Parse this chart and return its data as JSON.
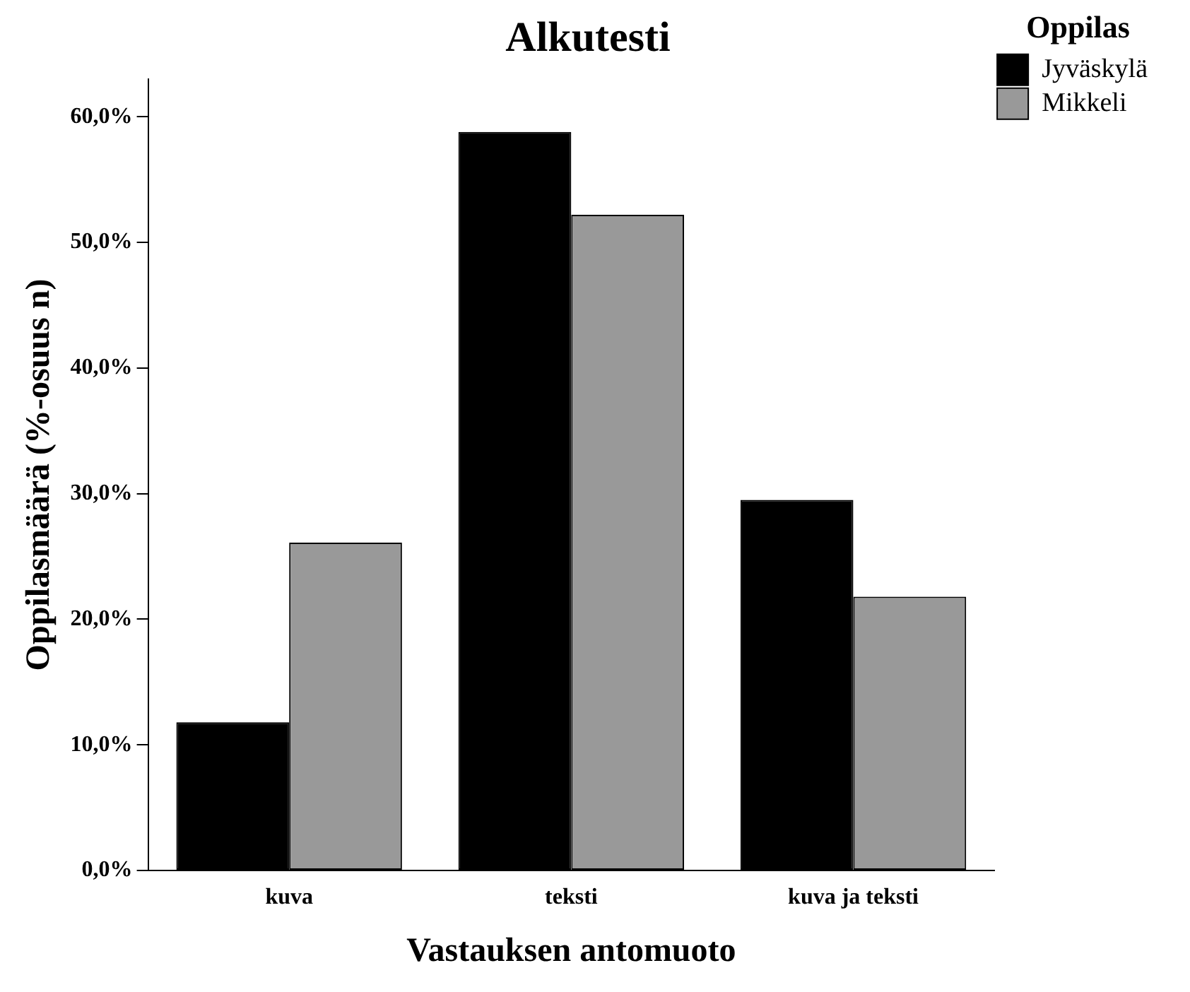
{
  "chart_data": {
    "type": "bar",
    "title": "Alkutesti",
    "xlabel": "Vastauksen antomuoto",
    "ylabel": "Oppilasmäärä (%-osuus n)",
    "legend_title": "Oppilas",
    "categories": [
      "kuva",
      "teksti",
      "kuva ja teksti"
    ],
    "series": [
      {
        "name": "Jyväskylä",
        "color": "#000000",
        "values": [
          11.8,
          58.8,
          29.5
        ]
      },
      {
        "name": "Mikkeli",
        "color": "#999999",
        "values": [
          26.1,
          52.2,
          21.8
        ]
      }
    ],
    "ylim": [
      0,
      63
    ],
    "yticks": [
      {
        "value": 0,
        "label": "0,0%"
      },
      {
        "value": 10,
        "label": "10,0%"
      },
      {
        "value": 20,
        "label": "20,0%"
      },
      {
        "value": 30,
        "label": "30,0%"
      },
      {
        "value": 40,
        "label": "40,0%"
      },
      {
        "value": 50,
        "label": "50,0%"
      },
      {
        "value": 60,
        "label": "60,0%"
      }
    ],
    "grid": false,
    "legend": "top right"
  }
}
